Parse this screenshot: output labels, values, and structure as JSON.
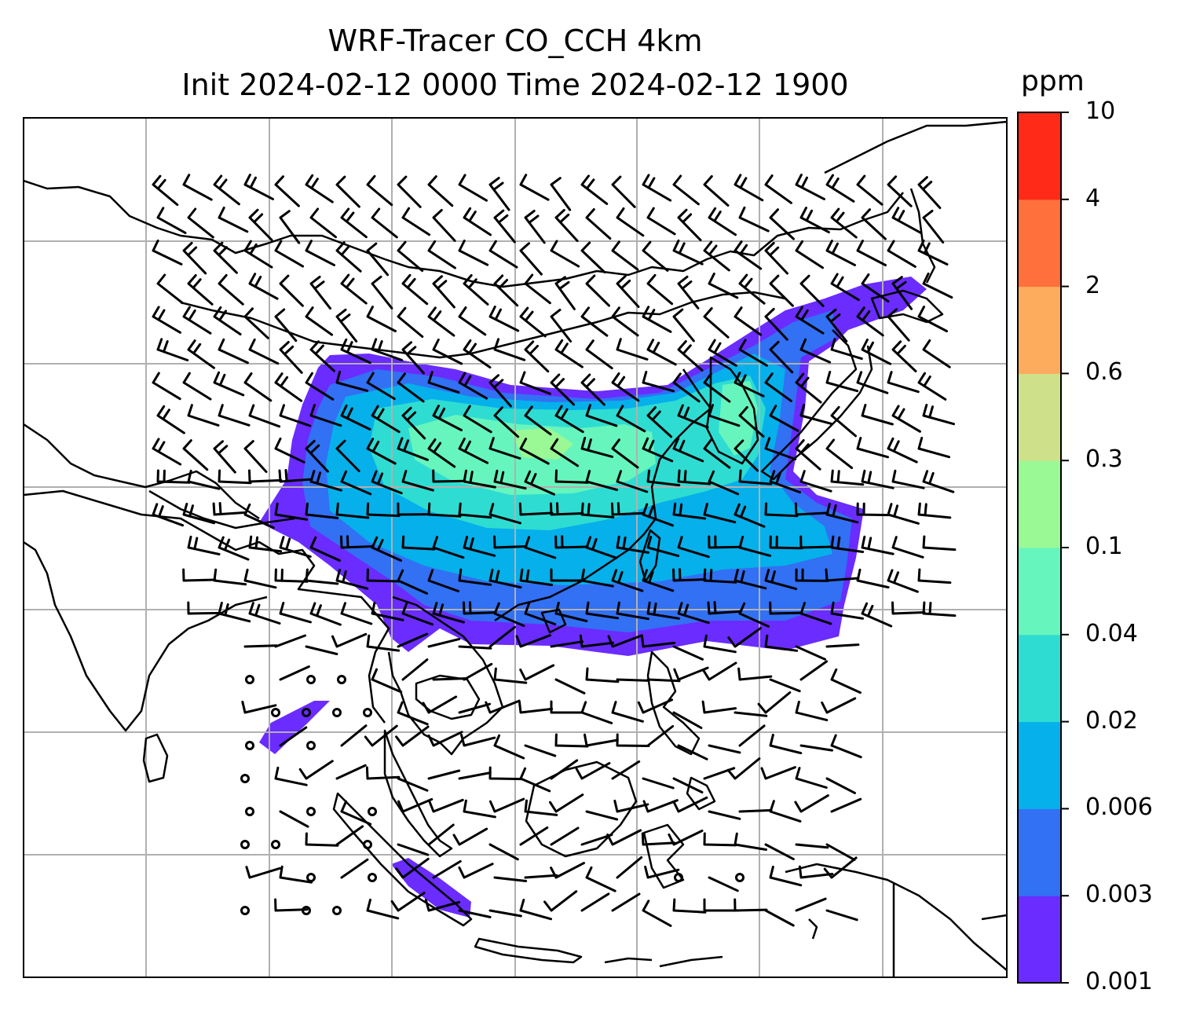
{
  "title": {
    "line1": "WRF-Tracer CO_CCH 4km",
    "line2": "Init 2024-02-12 0000 Time 2024-02-12 1900"
  },
  "colorbar": {
    "unit": "ppm",
    "levels": [
      "0.001",
      "0.003",
      "0.006",
      "0.02",
      "0.04",
      "0.1",
      "0.3",
      "0.6",
      "2",
      "4",
      "10"
    ],
    "colors": [
      "#6a2cff",
      "#3270f4",
      "#06b0ea",
      "#2fdcd2",
      "#66f5bd",
      "#9af895",
      "#cfe08a",
      "#fdac5e",
      "#ff703c",
      "#ff2a18"
    ]
  },
  "map": {
    "gridlines": true,
    "layers": [
      "coastlines",
      "country-borders",
      "co-tracer-concentration",
      "wind-barbs"
    ]
  }
}
